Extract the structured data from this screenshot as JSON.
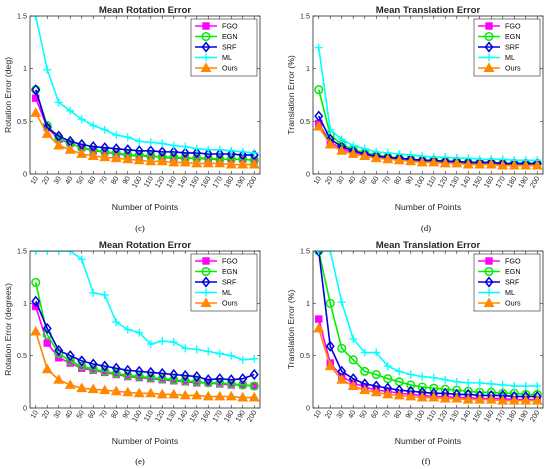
{
  "colors": {
    "FGO": "#ff00ff",
    "EGN": "#00ee00",
    "SRF": "#0000dd",
    "ML": "#00ffff",
    "Ours": "#ff8800",
    "axis": "#262626"
  },
  "chart_data": [
    {
      "id": "c",
      "type": "line",
      "title": "Mean Rotation Error",
      "xlabel": "Number of Points",
      "ylabel": "Rotation Error (deg)",
      "caption": "(c)",
      "x": [
        10,
        20,
        30,
        40,
        50,
        60,
        70,
        80,
        90,
        100,
        110,
        120,
        130,
        140,
        150,
        160,
        170,
        180,
        190,
        200
      ],
      "xlim": [
        5,
        205
      ],
      "ylim": [
        0,
        1.5
      ],
      "yticks": [
        0,
        0.5,
        1,
        1.5
      ],
      "ytick_labels": [
        "0",
        "0.5",
        "1",
        "1.5"
      ],
      "grid": false,
      "legend": "top-right",
      "series": [
        {
          "name": "FGO",
          "marker": "square",
          "values": [
            0.72,
            0.44,
            0.33,
            0.29,
            0.25,
            0.22,
            0.21,
            0.19,
            0.18,
            0.17,
            0.17,
            0.16,
            0.15,
            0.15,
            0.15,
            0.14,
            0.14,
            0.14,
            0.14,
            0.13
          ]
        },
        {
          "name": "EGN",
          "marker": "circle",
          "values": [
            0.8,
            0.46,
            0.34,
            0.29,
            0.25,
            0.23,
            0.21,
            0.2,
            0.18,
            0.18,
            0.17,
            0.16,
            0.16,
            0.15,
            0.15,
            0.15,
            0.14,
            0.14,
            0.14,
            0.13
          ]
        },
        {
          "name": "SRF",
          "marker": "diamond",
          "values": [
            0.8,
            0.44,
            0.36,
            0.31,
            0.28,
            0.26,
            0.25,
            0.24,
            0.23,
            0.22,
            0.22,
            0.21,
            0.21,
            0.2,
            0.2,
            0.19,
            0.19,
            0.19,
            0.18,
            0.18
          ]
        },
        {
          "name": "ML",
          "marker": "plus",
          "values": [
            1.5,
            0.99,
            0.68,
            0.6,
            0.52,
            0.46,
            0.42,
            0.37,
            0.35,
            0.31,
            0.3,
            0.29,
            0.27,
            0.26,
            0.24,
            0.23,
            0.23,
            0.22,
            0.21,
            0.2
          ]
        },
        {
          "name": "Ours",
          "marker": "triangle",
          "values": [
            0.58,
            0.38,
            0.27,
            0.23,
            0.19,
            0.17,
            0.16,
            0.15,
            0.14,
            0.13,
            0.12,
            0.12,
            0.11,
            0.11,
            0.1,
            0.1,
            0.1,
            0.09,
            0.09,
            0.09
          ]
        }
      ]
    },
    {
      "id": "d",
      "type": "line",
      "title": "Mean Translation Error",
      "xlabel": "Number of Points",
      "ylabel": "Translation Error (%)",
      "caption": "(d)",
      "x": [
        10,
        20,
        30,
        40,
        50,
        60,
        70,
        80,
        90,
        100,
        110,
        120,
        130,
        140,
        150,
        160,
        170,
        180,
        190,
        200
      ],
      "xlim": [
        5,
        205
      ],
      "ylim": [
        0,
        1.5
      ],
      "yticks": [
        0,
        0.5,
        1,
        1.5
      ],
      "ytick_labels": [
        "0",
        "0.5",
        "1",
        "1.5"
      ],
      "grid": false,
      "legend": "top-right",
      "series": [
        {
          "name": "FGO",
          "marker": "square",
          "values": [
            0.48,
            0.3,
            0.24,
            0.2,
            0.18,
            0.16,
            0.15,
            0.14,
            0.13,
            0.12,
            0.12,
            0.11,
            0.11,
            0.1,
            0.1,
            0.1,
            0.09,
            0.09,
            0.09,
            0.09
          ]
        },
        {
          "name": "EGN",
          "marker": "circle",
          "values": [
            0.8,
            0.37,
            0.28,
            0.23,
            0.2,
            0.18,
            0.16,
            0.15,
            0.14,
            0.13,
            0.13,
            0.12,
            0.12,
            0.11,
            0.11,
            0.11,
            0.1,
            0.1,
            0.1,
            0.1
          ]
        },
        {
          "name": "SRF",
          "marker": "diamond",
          "values": [
            0.55,
            0.33,
            0.26,
            0.22,
            0.19,
            0.17,
            0.16,
            0.15,
            0.14,
            0.13,
            0.13,
            0.12,
            0.12,
            0.11,
            0.11,
            0.11,
            0.1,
            0.1,
            0.1,
            0.1
          ]
        },
        {
          "name": "ML",
          "marker": "plus",
          "values": [
            1.2,
            0.42,
            0.33,
            0.27,
            0.24,
            0.21,
            0.2,
            0.19,
            0.18,
            0.17,
            0.16,
            0.16,
            0.15,
            0.15,
            0.14,
            0.14,
            0.14,
            0.13,
            0.13,
            0.13
          ]
        },
        {
          "name": "Ours",
          "marker": "triangle",
          "values": [
            0.45,
            0.28,
            0.22,
            0.19,
            0.17,
            0.15,
            0.14,
            0.13,
            0.12,
            0.11,
            0.11,
            0.1,
            0.1,
            0.09,
            0.09,
            0.09,
            0.08,
            0.08,
            0.08,
            0.08
          ]
        }
      ]
    },
    {
      "id": "e",
      "type": "line",
      "title": "Mean Rotation Error",
      "xlabel": "Number of Points",
      "ylabel": "Rotation Error (degrees)",
      "caption": "(e)",
      "x": [
        10,
        20,
        30,
        40,
        50,
        60,
        70,
        80,
        90,
        100,
        110,
        120,
        130,
        140,
        150,
        160,
        170,
        180,
        190,
        200
      ],
      "xlim": [
        5,
        205
      ],
      "ylim": [
        0,
        1.5
      ],
      "yticks": [
        0,
        0.5,
        1,
        1.5
      ],
      "ytick_labels": [
        "0",
        "0.5",
        "1",
        "1.5"
      ],
      "grid": false,
      "legend": "top-right",
      "series": [
        {
          "name": "FGO",
          "marker": "square",
          "values": [
            0.97,
            0.62,
            0.48,
            0.43,
            0.38,
            0.36,
            0.34,
            0.32,
            0.3,
            0.29,
            0.28,
            0.27,
            0.26,
            0.25,
            0.24,
            0.24,
            0.23,
            0.22,
            0.22,
            0.21
          ]
        },
        {
          "name": "EGN",
          "marker": "circle",
          "values": [
            1.2,
            0.7,
            0.52,
            0.45,
            0.4,
            0.37,
            0.35,
            0.33,
            0.31,
            0.3,
            0.29,
            0.28,
            0.27,
            0.26,
            0.25,
            0.24,
            0.24,
            0.23,
            0.22,
            0.21
          ]
        },
        {
          "name": "SRF",
          "marker": "diamond",
          "values": [
            1.02,
            0.76,
            0.55,
            0.5,
            0.45,
            0.42,
            0.4,
            0.38,
            0.36,
            0.35,
            0.34,
            0.33,
            0.32,
            0.31,
            0.3,
            0.27,
            0.28,
            0.27,
            0.28,
            0.32
          ]
        },
        {
          "name": "ML",
          "marker": "plus",
          "values": [
            1.5,
            1.5,
            1.5,
            1.5,
            1.42,
            1.1,
            1.08,
            0.82,
            0.75,
            0.72,
            0.61,
            0.64,
            0.63,
            0.57,
            0.56,
            0.54,
            0.52,
            0.5,
            0.46,
            0.47
          ]
        },
        {
          "name": "Ours",
          "marker": "triangle",
          "values": [
            0.73,
            0.37,
            0.27,
            0.22,
            0.19,
            0.18,
            0.17,
            0.16,
            0.15,
            0.14,
            0.14,
            0.13,
            0.13,
            0.12,
            0.12,
            0.11,
            0.11,
            0.11,
            0.1,
            0.1
          ]
        }
      ]
    },
    {
      "id": "f",
      "type": "line",
      "title": "Mean Translation Error",
      "xlabel": "Number of Points",
      "ylabel": "Translation Error (%)",
      "caption": "(f)",
      "x": [
        10,
        20,
        30,
        40,
        50,
        60,
        70,
        80,
        90,
        100,
        110,
        120,
        130,
        140,
        150,
        160,
        170,
        180,
        190,
        200
      ],
      "xlim": [
        5,
        205
      ],
      "ylim": [
        0,
        1.5
      ],
      "yticks": [
        0,
        0.5,
        1,
        1.5
      ],
      "ytick_labels": [
        "0",
        "0.5",
        "1",
        "1.5"
      ],
      "grid": false,
      "legend": "top-right",
      "series": [
        {
          "name": "FGO",
          "marker": "square",
          "values": [
            0.85,
            0.43,
            0.3,
            0.24,
            0.2,
            0.17,
            0.16,
            0.14,
            0.13,
            0.12,
            0.11,
            0.11,
            0.1,
            0.1,
            0.09,
            0.09,
            0.09,
            0.08,
            0.08,
            0.08
          ]
        },
        {
          "name": "EGN",
          "marker": "circle",
          "values": [
            1.5,
            1.0,
            0.57,
            0.46,
            0.35,
            0.32,
            0.28,
            0.25,
            0.22,
            0.2,
            0.19,
            0.18,
            0.17,
            0.16,
            0.15,
            0.15,
            0.14,
            0.14,
            0.13,
            0.13
          ]
        },
        {
          "name": "SRF",
          "marker": "diamond",
          "values": [
            1.5,
            0.59,
            0.35,
            0.28,
            0.23,
            0.21,
            0.19,
            0.17,
            0.16,
            0.15,
            0.14,
            0.14,
            0.13,
            0.13,
            0.12,
            0.12,
            0.12,
            0.11,
            0.11,
            0.11
          ]
        },
        {
          "name": "ML",
          "marker": "plus",
          "values": [
            1.5,
            1.5,
            1.01,
            0.66,
            0.53,
            0.53,
            0.4,
            0.35,
            0.32,
            0.3,
            0.29,
            0.27,
            0.25,
            0.24,
            0.24,
            0.23,
            0.22,
            0.21,
            0.21,
            0.21
          ]
        },
        {
          "name": "Ours",
          "marker": "triangle",
          "values": [
            0.76,
            0.4,
            0.27,
            0.21,
            0.17,
            0.15,
            0.13,
            0.12,
            0.11,
            0.1,
            0.1,
            0.09,
            0.09,
            0.08,
            0.08,
            0.08,
            0.07,
            0.07,
            0.07,
            0.07
          ]
        }
      ]
    }
  ]
}
